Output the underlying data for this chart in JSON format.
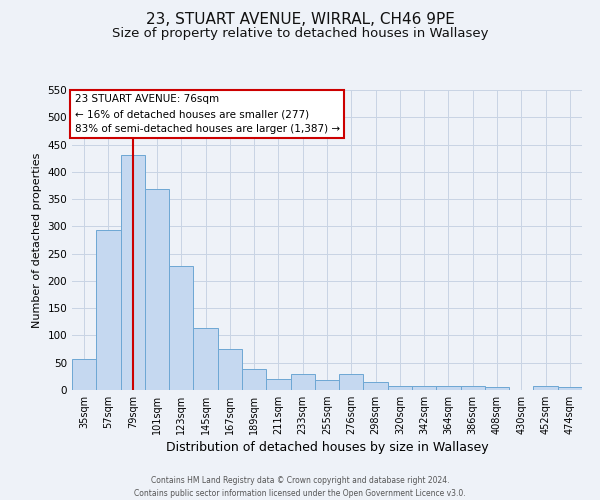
{
  "title": "23, STUART AVENUE, WIRRAL, CH46 9PE",
  "subtitle": "Size of property relative to detached houses in Wallasey",
  "xlabel": "Distribution of detached houses by size in Wallasey",
  "ylabel": "Number of detached properties",
  "categories": [
    "35sqm",
    "57sqm",
    "79sqm",
    "101sqm",
    "123sqm",
    "145sqm",
    "167sqm",
    "189sqm",
    "211sqm",
    "233sqm",
    "255sqm",
    "276sqm",
    "298sqm",
    "320sqm",
    "342sqm",
    "364sqm",
    "386sqm",
    "408sqm",
    "430sqm",
    "452sqm",
    "474sqm"
  ],
  "values": [
    57,
    293,
    430,
    368,
    227,
    113,
    76,
    39,
    20,
    29,
    18,
    29,
    15,
    7,
    7,
    7,
    7,
    5,
    0,
    8,
    5
  ],
  "bar_color": "#c5d8f0",
  "bar_edge_color": "#6da7d4",
  "ylim": [
    0,
    550
  ],
  "yticks": [
    0,
    50,
    100,
    150,
    200,
    250,
    300,
    350,
    400,
    450,
    500,
    550
  ],
  "red_line_x": 2,
  "annotation_title": "23 STUART AVENUE: 76sqm",
  "annotation_line1": "← 16% of detached houses are smaller (277)",
  "annotation_line2": "83% of semi-detached houses are larger (1,387) →",
  "annotation_box_color": "#ffffff",
  "annotation_box_edge": "#cc0000",
  "red_line_color": "#cc0000",
  "footer_line1": "Contains HM Land Registry data © Crown copyright and database right 2024.",
  "footer_line2": "Contains public sector information licensed under the Open Government Licence v3.0.",
  "bg_color": "#eef2f8",
  "grid_color": "#c8d4e4",
  "title_fontsize": 11,
  "subtitle_fontsize": 9.5,
  "xlabel_fontsize": 9,
  "ylabel_fontsize": 8
}
